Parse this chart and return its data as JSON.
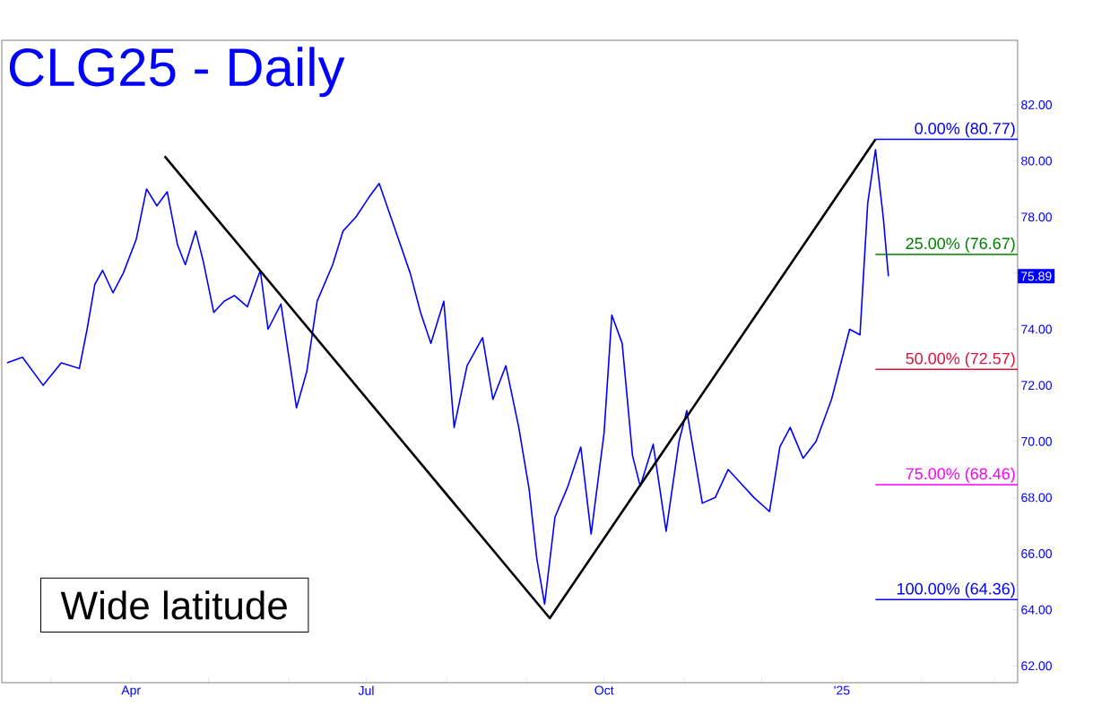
{
  "chart_data": {
    "type": "line",
    "title": "CLG25 - Daily",
    "x": [
      "2024-02-13",
      "2024-02-19",
      "2024-02-27",
      "2024-03-05",
      "2024-03-12",
      "2024-03-15",
      "2024-03-18",
      "2024-03-21",
      "2024-03-25",
      "2024-03-29",
      "2024-04-03",
      "2024-04-07",
      "2024-04-11",
      "2024-04-15",
      "2024-04-19",
      "2024-04-22",
      "2024-04-26",
      "2024-04-29",
      "2024-05-03",
      "2024-05-07",
      "2024-05-11",
      "2024-05-16",
      "2024-05-21",
      "2024-05-24",
      "2024-05-29",
      "2024-06-04",
      "2024-06-08",
      "2024-06-12",
      "2024-06-18",
      "2024-06-22",
      "2024-06-27",
      "2024-07-02",
      "2024-07-06",
      "2024-07-12",
      "2024-07-18",
      "2024-07-22",
      "2024-07-26",
      "2024-07-31",
      "2024-08-04",
      "2024-08-09",
      "2024-08-15",
      "2024-08-19",
      "2024-08-24",
      "2024-08-29",
      "2024-09-02",
      "2024-09-05",
      "2024-09-08",
      "2024-09-12",
      "2024-09-17",
      "2024-09-22",
      "2024-09-26",
      "2024-10-01",
      "2024-10-04",
      "2024-10-08",
      "2024-10-12",
      "2024-10-15",
      "2024-10-20",
      "2024-10-25",
      "2024-10-30",
      "2024-11-02",
      "2024-11-08",
      "2024-11-13",
      "2024-11-18",
      "2024-11-23",
      "2024-11-28",
      "2024-12-04",
      "2024-12-08",
      "2024-12-12",
      "2024-12-17",
      "2024-12-22",
      "2024-12-28",
      "2025-01-04",
      "2025-01-08",
      "2025-01-11",
      "2025-01-14",
      "2025-01-17",
      "2025-01-19"
    ],
    "series": [
      {
        "color": "#0000ff",
        "values": [
          72.8,
          73.0,
          72.0,
          72.8,
          72.6,
          74.0,
          75.6,
          76.1,
          75.3,
          76.0,
          77.2,
          79.0,
          78.4,
          78.9,
          77.0,
          76.3,
          77.5,
          76.4,
          74.6,
          75.0,
          75.2,
          74.8,
          76.1,
          74.0,
          74.9,
          71.2,
          72.5,
          75.0,
          76.3,
          77.5,
          78.0,
          78.7,
          79.2,
          77.6,
          76.0,
          74.6,
          73.5,
          75.0,
          70.5,
          72.7,
          73.7,
          71.5,
          72.7,
          70.5,
          68.3,
          65.8,
          64.2,
          67.3,
          68.4,
          69.8,
          66.7,
          70.3,
          74.5,
          73.5,
          69.5,
          68.4,
          69.9,
          66.8,
          70.0,
          71.1,
          67.8,
          68.0,
          69.0,
          68.5,
          68.0,
          67.5,
          69.8,
          70.5,
          69.4,
          70.0,
          71.5,
          74.0,
          73.8,
          78.5,
          80.4,
          78.0,
          75.89
        ]
      },
      {
        "color": "#000000",
        "x": [
          "2024-04-14",
          "2024-09-10",
          "2025-01-14"
        ],
        "values": [
          80.17,
          63.7,
          80.77
        ]
      }
    ],
    "xlim": [
      "2024-02-11",
      "2025-03-10"
    ],
    "xticks": [
      {
        "value": "2024-03-01",
        "label": null
      },
      {
        "value": "2024-04-01",
        "label": "Apr"
      },
      {
        "value": "2024-05-01",
        "label": null
      },
      {
        "value": "2024-06-01",
        "label": null
      },
      {
        "value": "2024-07-01",
        "label": "Jul"
      },
      {
        "value": "2024-08-01",
        "label": null
      },
      {
        "value": "2024-09-01",
        "label": null
      },
      {
        "value": "2024-10-01",
        "label": "Oct"
      },
      {
        "value": "2024-11-01",
        "label": null
      },
      {
        "value": "2024-12-01",
        "label": null
      },
      {
        "value": "2025-01-01",
        "label": "'25"
      },
      {
        "value": "2025-02-01",
        "label": null
      },
      {
        "value": "2025-03-01",
        "label": null
      }
    ],
    "ylim": [
      61.4,
      84.3
    ],
    "yticks": [
      {
        "value": 62,
        "label": "62.00"
      },
      {
        "value": 64,
        "label": "64.00"
      },
      {
        "value": 66,
        "label": "66.00"
      },
      {
        "value": 68,
        "label": "68.00"
      },
      {
        "value": 70,
        "label": "70.00"
      },
      {
        "value": 72,
        "label": "72.00"
      },
      {
        "value": 74,
        "label": "74.00"
      },
      {
        "value": 76,
        "label": null
      },
      {
        "value": 78,
        "label": "78.00"
      },
      {
        "value": 80,
        "label": "80.00"
      },
      {
        "value": 82,
        "label": "82.00"
      }
    ],
    "ref_lines": [
      {
        "axis": "y",
        "value": 80.77,
        "label": "0.00% (80.77)",
        "color": "#0000ff"
      },
      {
        "axis": "y",
        "value": 76.67,
        "label": "25.00% (76.67)",
        "color": "#008000"
      },
      {
        "axis": "y",
        "value": 72.57,
        "label": "50.00% (72.57)",
        "color": "#dc143c"
      },
      {
        "axis": "y",
        "value": 68.46,
        "label": "75.00% (68.46)",
        "color": "#ff00ff"
      },
      {
        "axis": "y",
        "value": 64.36,
        "label": "100.00% (64.36)",
        "color": "#0000ff"
      }
    ],
    "annotations": [
      "Wide latitude",
      {
        "text": "75.89",
        "y": 75.89
      }
    ]
  }
}
